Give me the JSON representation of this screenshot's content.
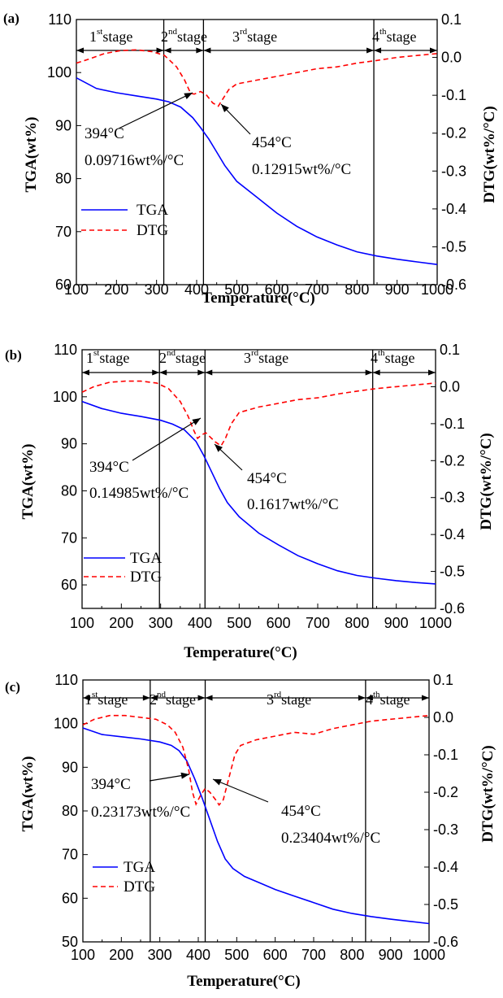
{
  "chart_data": [
    {
      "type": "line",
      "panel_label": "(a)",
      "xlabel": "Temperature(°C)",
      "ylabel": "TGA(wt%)",
      "y2label": "DTG(wt%/°C)",
      "xlim": [
        100,
        1000
      ],
      "ylim": [
        60,
        110
      ],
      "y2lim": [
        -0.6,
        0.1
      ],
      "xticks": [
        "100",
        "200",
        "300",
        "400",
        "500",
        "600",
        "700",
        "800",
        "900",
        "1000"
      ],
      "yticks": [
        "60",
        "70",
        "80",
        "90",
        "100",
        "110"
      ],
      "y2ticks": [
        "-0.6",
        "-0.5",
        "-0.4",
        "-0.3",
        "-0.2",
        "-0.1",
        "0.0",
        "0.1"
      ],
      "stage_boundaries": [
        318,
        417,
        842
      ],
      "stages": [
        {
          "num": "1",
          "sup": "st",
          "word": "stage"
        },
        {
          "num": "2",
          "sup": "nd",
          "word": "stage"
        },
        {
          "num": "3",
          "sup": "rd",
          "word": "stage"
        },
        {
          "num": "4",
          "sup": "th",
          "word": "stage"
        }
      ],
      "series": [
        {
          "name": "TGA",
          "axis": "left",
          "color": "#0000ff",
          "dash": "solid",
          "x": [
            100,
            150,
            200,
            250,
            300,
            330,
            360,
            390,
            410,
            430,
            450,
            470,
            500,
            550,
            600,
            650,
            700,
            750,
            800,
            850,
            900,
            950,
            1000
          ],
          "y": [
            99,
            97,
            96.2,
            95.6,
            95,
            94.5,
            93.5,
            91.5,
            89.6,
            87.5,
            85,
            82.5,
            79.5,
            76.5,
            73.5,
            71,
            69,
            67.5,
            66.2,
            65.4,
            64.8,
            64.3,
            63.8
          ]
        },
        {
          "name": "DTG",
          "axis": "right",
          "color": "#ff0000",
          "dash": "dashed",
          "x": [
            100,
            130,
            170,
            210,
            250,
            290,
            320,
            350,
            370,
            385,
            394,
            410,
            425,
            440,
            454,
            465,
            480,
            500,
            550,
            600,
            650,
            700,
            750,
            800,
            850,
            900,
            950,
            1000
          ],
          "y": [
            -0.015,
            -0.005,
            0.01,
            0.018,
            0.02,
            0.015,
            0.005,
            -0.025,
            -0.06,
            -0.095,
            -0.097,
            -0.09,
            -0.1,
            -0.12,
            -0.129,
            -0.11,
            -0.085,
            -0.07,
            -0.06,
            -0.05,
            -0.04,
            -0.03,
            -0.025,
            -0.015,
            -0.008,
            0.0,
            0.005,
            0.01
          ]
        }
      ],
      "annotations": [
        {
          "temp": "394°C",
          "value": "0.09716wt%/°C"
        },
        {
          "temp": "454°C",
          "value": "0.12915wt%/°C"
        }
      ]
    },
    {
      "type": "line",
      "panel_label": "(b)",
      "xlabel": "Temperature(°C)",
      "ylabel": "TGA(wt%)",
      "y2label": "DTG(wt%/°C)",
      "xlim": [
        100,
        1000
      ],
      "ylim": [
        55,
        110
      ],
      "y2lim": [
        -0.6,
        0.1
      ],
      "xticks": [
        "100",
        "200",
        "300",
        "400",
        "500",
        "600",
        "700",
        "800",
        "900",
        "1000"
      ],
      "yticks": [
        "60",
        "70",
        "80",
        "90",
        "100",
        "110"
      ],
      "y2ticks": [
        "-0.6",
        "-0.5",
        "-0.4",
        "-0.3",
        "-0.2",
        "-0.1",
        "0.0",
        "0.1"
      ],
      "stage_boundaries": [
        297,
        413,
        840
      ],
      "stages": [
        {
          "num": "1",
          "sup": "st",
          "word": "stage"
        },
        {
          "num": "2",
          "sup": "nd",
          "word": "stage"
        },
        {
          "num": "3",
          "sup": "rd",
          "word": "stage"
        },
        {
          "num": "4",
          "sup": "th",
          "word": "stage"
        }
      ],
      "series": [
        {
          "name": "TGA",
          "axis": "left",
          "color": "#0000ff",
          "dash": "solid",
          "x": [
            100,
            150,
            200,
            250,
            300,
            330,
            360,
            390,
            410,
            430,
            450,
            470,
            500,
            550,
            600,
            650,
            700,
            750,
            800,
            850,
            900,
            950,
            1000
          ],
          "y": [
            99,
            97.5,
            96.5,
            95.8,
            95,
            94.2,
            93,
            90.5,
            87.5,
            84,
            80.5,
            77.5,
            74.5,
            71,
            68.5,
            66.2,
            64.5,
            63,
            62,
            61.4,
            60.9,
            60.5,
            60.2
          ]
        },
        {
          "name": "DTG",
          "axis": "right",
          "color": "#ff0000",
          "dash": "dashed",
          "x": [
            100,
            130,
            170,
            210,
            250,
            290,
            320,
            350,
            370,
            385,
            394,
            405,
            415,
            425,
            440,
            454,
            465,
            480,
            500,
            550,
            600,
            650,
            700,
            750,
            800,
            850,
            900,
            950,
            1000
          ],
          "y": [
            -0.015,
            0.0,
            0.012,
            0.015,
            0.015,
            0.01,
            -0.005,
            -0.04,
            -0.08,
            -0.12,
            -0.14,
            -0.13,
            -0.125,
            -0.135,
            -0.15,
            -0.16,
            -0.14,
            -0.1,
            -0.07,
            -0.055,
            -0.045,
            -0.035,
            -0.03,
            -0.02,
            -0.012,
            -0.005,
            0.0,
            0.005,
            0.01
          ]
        }
      ],
      "annotations": [
        {
          "temp": "394°C",
          "value": "0.14985wt%/°C"
        },
        {
          "temp": "454°C",
          "value": "0.1617wt%/°C"
        }
      ]
    },
    {
      "type": "line",
      "panel_label": "(c)",
      "xlabel": "Temperature(°C)",
      "ylabel": "TGA(wt%)",
      "y2label": "DTG(wt%/°C)",
      "xlim": [
        100,
        1000
      ],
      "ylim": [
        50,
        110
      ],
      "y2lim": [
        -0.6,
        0.1
      ],
      "xticks": [
        "100",
        "200",
        "300",
        "400",
        "500",
        "600",
        "700",
        "800",
        "900",
        "1000"
      ],
      "yticks": [
        "50",
        "60",
        "70",
        "80",
        "90",
        "100",
        "110"
      ],
      "y2ticks": [
        "-0.6",
        "-0.5",
        "-0.4",
        "-0.3",
        "-0.2",
        "-0.1",
        "0.0",
        "0.1"
      ],
      "stage_boundaries": [
        275,
        418,
        835
      ],
      "stages": [
        {
          "num": "1",
          "sup": "st",
          "word": "stage"
        },
        {
          "num": "2",
          "sup": "nd",
          "word": "stage"
        },
        {
          "num": "3",
          "sup": "rd",
          "word": "stage"
        },
        {
          "num": "4",
          "sup": "th",
          "word": "stage"
        }
      ],
      "series": [
        {
          "name": "TGA",
          "axis": "left",
          "color": "#0000ff",
          "dash": "solid",
          "x": [
            100,
            150,
            200,
            250,
            300,
            330,
            350,
            370,
            390,
            410,
            430,
            450,
            470,
            490,
            520,
            560,
            600,
            650,
            700,
            750,
            800,
            850,
            900,
            950,
            1000
          ],
          "y": [
            99,
            97.5,
            97,
            96.5,
            95.8,
            95,
            93.8,
            91.5,
            87.5,
            83,
            78,
            73,
            69,
            66.8,
            65,
            63.5,
            62,
            60.5,
            59,
            57.5,
            56.5,
            55.8,
            55.2,
            54.7,
            54.2
          ]
        },
        {
          "name": "DTG",
          "axis": "right",
          "color": "#ff0000",
          "dash": "dashed",
          "x": [
            100,
            130,
            170,
            210,
            250,
            290,
            320,
            340,
            360,
            375,
            385,
            394,
            405,
            418,
            430,
            445,
            454,
            465,
            480,
            495,
            510,
            550,
            600,
            650,
            700,
            750,
            800,
            850,
            900,
            950,
            1000
          ],
          "y": [
            -0.02,
            -0.005,
            0.005,
            0.005,
            0.0,
            -0.005,
            -0.02,
            -0.04,
            -0.08,
            -0.14,
            -0.2,
            -0.232,
            -0.21,
            -0.19,
            -0.2,
            -0.22,
            -0.234,
            -0.22,
            -0.16,
            -0.1,
            -0.075,
            -0.06,
            -0.05,
            -0.04,
            -0.045,
            -0.03,
            -0.02,
            -0.01,
            -0.005,
            0.0,
            0.005
          ]
        }
      ],
      "annotations": [
        {
          "temp": "394°C",
          "value": "0.23173wt%/°C"
        },
        {
          "temp": "454°C",
          "value": "0.23404wt%/°C"
        }
      ]
    }
  ]
}
